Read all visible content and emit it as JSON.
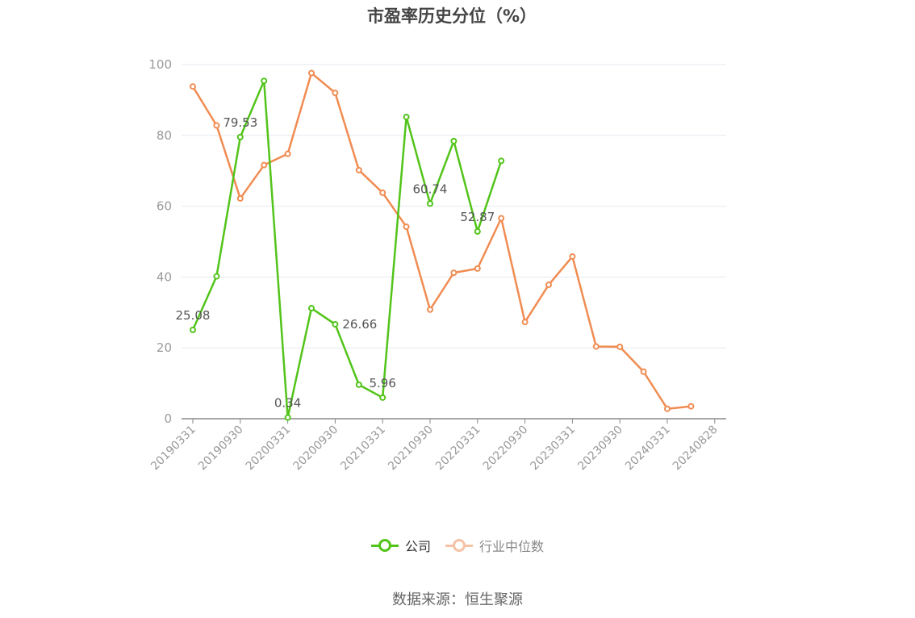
{
  "title": "市盈率历史分位（%）",
  "source": "数据来源：恒生聚源",
  "colors": {
    "company": "#52c41a",
    "industry": "#f08c52",
    "grid": "#e6e9f0",
    "axis": "#999999",
    "label": "#555555"
  },
  "legend": {
    "company": "公司",
    "industry": "行业中位数"
  },
  "chart_data": {
    "type": "line",
    "title": "市盈率历史分位（%）",
    "xlabel": "",
    "ylabel": "",
    "ylim": [
      0,
      100
    ],
    "yticks": [
      0,
      20,
      40,
      60,
      80,
      100
    ],
    "grid": true,
    "legend_position": "bottom",
    "x_tick_labels": [
      "20190331",
      "20190930",
      "20200331",
      "20200930",
      "20210331",
      "20210930",
      "20220331",
      "20220930",
      "20230331",
      "20230930",
      "20240331",
      "20240828"
    ],
    "x_tick_steps": [
      0,
      2,
      4,
      6,
      8,
      10,
      12,
      14,
      16,
      18,
      20,
      22
    ],
    "series": [
      {
        "name": "公司",
        "key": "company",
        "values": [
          25.08,
          40.2,
          79.53,
          95.4,
          0.34,
          31.2,
          26.66,
          9.6,
          5.96,
          85.2,
          60.74,
          78.4,
          52.87,
          72.8
        ],
        "labels": [
          {
            "index": 0,
            "text": "25.08",
            "pos": "above"
          },
          {
            "index": 2,
            "text": "79.53",
            "pos": "above"
          },
          {
            "index": 4,
            "text": "0.34",
            "pos": "above"
          },
          {
            "index": 6,
            "text": "26.66",
            "pos": "above-right"
          },
          {
            "index": 8,
            "text": "5.96",
            "pos": "above"
          },
          {
            "index": 10,
            "text": "60.74",
            "pos": "above"
          },
          {
            "index": 12,
            "text": "52.87",
            "pos": "above"
          }
        ]
      },
      {
        "name": "行业中位数",
        "key": "industry",
        "values": [
          93.8,
          82.8,
          62.2,
          71.6,
          74.8,
          97.6,
          92.0,
          70.2,
          63.8,
          54.2,
          30.8,
          41.2,
          42.4,
          56.6,
          27.3,
          37.8,
          45.8,
          20.4,
          20.3,
          13.3,
          2.8,
          3.5
        ]
      }
    ]
  }
}
